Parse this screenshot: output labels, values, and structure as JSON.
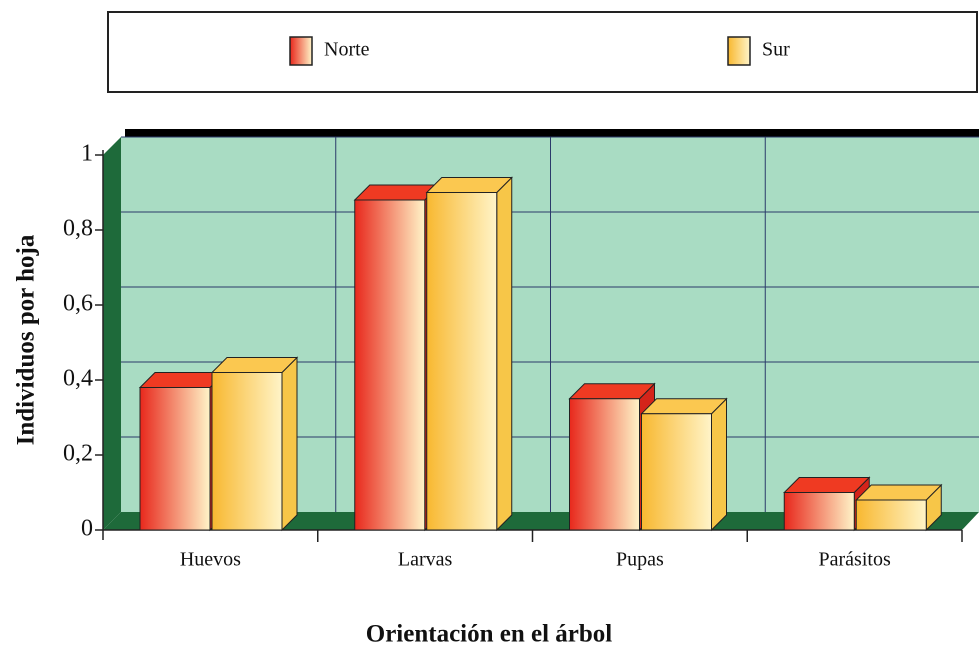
{
  "chart_data": {
    "type": "bar3d",
    "x_label": "Orientación en el árbol",
    "y_label": "Individuos por hoja",
    "categories": [
      "Huevos",
      "Larvas",
      "Pupas",
      "Parásitos"
    ],
    "series": [
      {
        "name": "Norte",
        "color": "#e8281c",
        "values": [
          0.38,
          0.88,
          0.35,
          0.1
        ]
      },
      {
        "name": "Sur",
        "color": "#f8b830",
        "values": [
          0.42,
          0.9,
          0.31,
          0.08
        ]
      }
    ],
    "ylim": [
      0,
      1
    ],
    "yticks": [
      0,
      {
        "value": 0.2,
        "label": "0,2"
      },
      {
        "value": 0.4,
        "label": "0,4"
      },
      {
        "value": 0.6,
        "label": "0,6"
      },
      {
        "value": 0.8,
        "label": "0,8"
      },
      1
    ],
    "grid": true,
    "legend": "top"
  }
}
